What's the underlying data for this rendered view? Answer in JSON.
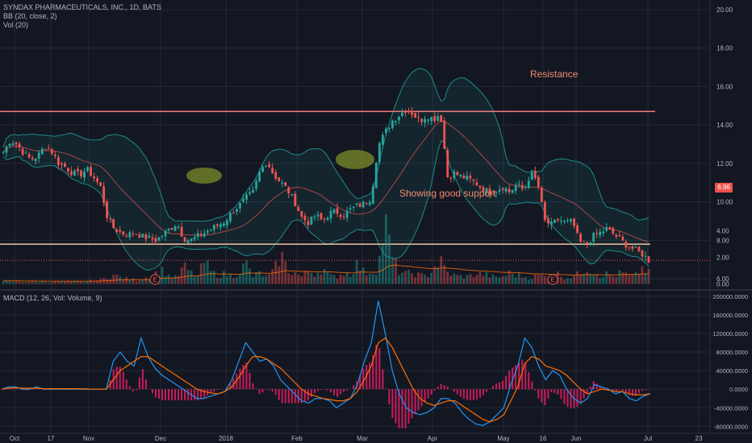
{
  "legend": {
    "main": "SYNDAX PHARMACEUTICALS, INC., 1D, BATS",
    "bb": "BB (20, close, 2)",
    "vol": "Vol (20)",
    "macd": "MACD (12, 26, Vol: Volume, 9)"
  },
  "annotations": {
    "resistance": "Resistance",
    "support": "Showing good support"
  },
  "price_tag": "6.96",
  "earnings_marker": "E",
  "colors": {
    "background": "#131722",
    "up": "#26a69a",
    "down": "#ef5350",
    "bb_band": "#1e8b8b",
    "bb_basis": "#ef5350",
    "level_line": "#f47c7c",
    "support_line": "#f0c6a0",
    "ellipse": "#8b9c2a",
    "macd_line": "#2196f3",
    "signal_line": "#ff6d00",
    "hist": "#e91e63",
    "grid": "#232a3a",
    "axis_text": "#b2b5be"
  },
  "chart_data": [
    {
      "type": "candlestick",
      "title": "SYNDAX PHARMACEUTICALS, INC., 1D, BATS",
      "x_ticks": [
        "Oct",
        "17",
        "Nov",
        "Dec",
        "2018",
        "Feb",
        "Mar",
        "Apr",
        "May",
        "16",
        "Jun",
        "Jul",
        "23"
      ],
      "y_ticks": [
        "6.00",
        "8.00",
        "10.00",
        "12.00",
        "14.00",
        "16.00",
        "18.00",
        "20.00"
      ],
      "ylim": [
        5.5,
        20.5
      ],
      "resistance_level": 14.7,
      "support_level": 7.8,
      "last_price": 6.96,
      "close_path": [
        12.6,
        13.2,
        13.0,
        12.5,
        12.2,
        12.4,
        12.9,
        12.6,
        12.0,
        11.8,
        11.5,
        11.4,
        11.7,
        11.3,
        10.8,
        9.2,
        8.6,
        8.4,
        8.3,
        8.4,
        8.2,
        8.1,
        8.0,
        8.3,
        8.6,
        8.9,
        8.1,
        8.0,
        8.2,
        8.4,
        8.6,
        8.8,
        9.0,
        9.5,
        9.8,
        10.2,
        10.5,
        11.6,
        12.1,
        11.4,
        11.0,
        10.6,
        10.0,
        9.2,
        8.9,
        9.3,
        9.0,
        9.4,
        9.5,
        9.3,
        9.6,
        9.8,
        9.9,
        10.2,
        12.9,
        13.6,
        14.2,
        14.5,
        14.8,
        14.6,
        14.2,
        14.5,
        14.3,
        14.6,
        11.3,
        11.5,
        11.3,
        11.2,
        11.0,
        10.7,
        10.5,
        10.6,
        10.8,
        10.5,
        10.9,
        10.6,
        11.5,
        11.0,
        9.0,
        8.8,
        9.1,
        8.9,
        9.0,
        7.9,
        7.8,
        8.2,
        8.4,
        8.6,
        8.3,
        8.0,
        7.7,
        7.5,
        7.3,
        6.96
      ]
    },
    {
      "type": "bar",
      "title": "Vol (20)",
      "y_ticks": [
        "0.00",
        "2.00",
        "4.00"
      ],
      "ylim": [
        -0.2,
        5
      ],
      "earnings_markers_at_bar": [
        22,
        79,
        122
      ],
      "volume_path": [
        0.2,
        0.2,
        0.2,
        0.2,
        0.2,
        0.2,
        0.2,
        0.2,
        0.2,
        0.2,
        0.2,
        0.2,
        0.2,
        0.3,
        0.3,
        0.6,
        0.7,
        0.5,
        0.4,
        0.3,
        0.4,
        0.6,
        0.9,
        1.1,
        0.6,
        0.5,
        1.4,
        0.9,
        0.6,
        1.8,
        0.9,
        0.7,
        0.8,
        0.6,
        1.0,
        1.6,
        0.6,
        0.9,
        0.5,
        1.0,
        2.4,
        1.1,
        0.9,
        0.6,
        1.1,
        0.8,
        1.3,
        0.6,
        0.6,
        0.9,
        0.8,
        1.6,
        0.9,
        1.0,
        1.2,
        4.9,
        2.1,
        1.0,
        0.8,
        0.9,
        0.7,
        0.6,
        1.3,
        1.8,
        0.9,
        0.7,
        0.6,
        0.6,
        0.8,
        0.8,
        0.7,
        0.5,
        0.6,
        0.9,
        0.7,
        0.6,
        0.5,
        0.7,
        0.6,
        0.7,
        0.8,
        0.5,
        0.6,
        0.8,
        1.3,
        1.0,
        0.7,
        0.8,
        0.6,
        0.9,
        0.7,
        0.6,
        1.3,
        0.9
      ]
    },
    {
      "type": "line",
      "title": "MACD (12, 26, Vol: Volume, 9)",
      "y_ticks": [
        "-80000.0000",
        "-40000.0000",
        "0.0000",
        "40000.0000",
        "80000.0000",
        "120000.0000",
        "160000.0000",
        "200000.0000"
      ],
      "ylim": [
        -95000,
        210000
      ],
      "series": [
        {
          "name": "MACD",
          "values": [
            0,
            5000,
            5000,
            0,
            0,
            5000,
            0,
            0,
            0,
            0,
            0,
            0,
            0,
            0,
            0,
            0,
            60000,
            80000,
            60000,
            50000,
            110000,
            70000,
            45000,
            30000,
            20000,
            10000,
            0,
            -10000,
            -20000,
            -20000,
            -15000,
            -10000,
            -5000,
            20000,
            60000,
            100000,
            80000,
            60000,
            65000,
            50000,
            20000,
            5000,
            -10000,
            -25000,
            -30000,
            -20000,
            -20000,
            -25000,
            -40000,
            -30000,
            -20000,
            10000,
            60000,
            100000,
            190000,
            120000,
            40000,
            -10000,
            -40000,
            -50000,
            -55000,
            -50000,
            -40000,
            -20000,
            -20000,
            -30000,
            -50000,
            -65000,
            -75000,
            -78000,
            -70000,
            -55000,
            -40000,
            10000,
            50000,
            110000,
            90000,
            50000,
            20000,
            40000,
            30000,
            0,
            -20000,
            -30000,
            -20000,
            10000,
            5000,
            0,
            -10000,
            -5000,
            -20000,
            -25000,
            -15000,
            -10000
          ]
        },
        {
          "name": "Signal",
          "values": [
            0,
            2000,
            3000,
            2000,
            2000,
            2000,
            1000,
            1000,
            1000,
            1000,
            1000,
            1000,
            1000,
            0,
            0,
            0,
            20000,
            40000,
            50000,
            60000,
            70000,
            70000,
            60000,
            50000,
            40000,
            30000,
            20000,
            10000,
            0,
            -5000,
            -8000,
            -10000,
            -5000,
            5000,
            25000,
            50000,
            70000,
            70000,
            65000,
            55000,
            45000,
            30000,
            15000,
            0,
            -10000,
            -15000,
            -20000,
            -22000,
            -25000,
            -25000,
            -20000,
            -5000,
            20000,
            50000,
            100000,
            110000,
            90000,
            60000,
            30000,
            0,
            -20000,
            -30000,
            -35000,
            -30000,
            -25000,
            -25000,
            -35000,
            -45000,
            -55000,
            -65000,
            -70000,
            -65000,
            -55000,
            -25000,
            5000,
            55000,
            70000,
            65000,
            50000,
            45000,
            40000,
            30000,
            15000,
            0,
            -10000,
            -5000,
            0,
            -2000,
            -5000,
            -5000,
            -10000,
            -12000,
            -12000,
            -10000
          ]
        }
      ]
    }
  ]
}
